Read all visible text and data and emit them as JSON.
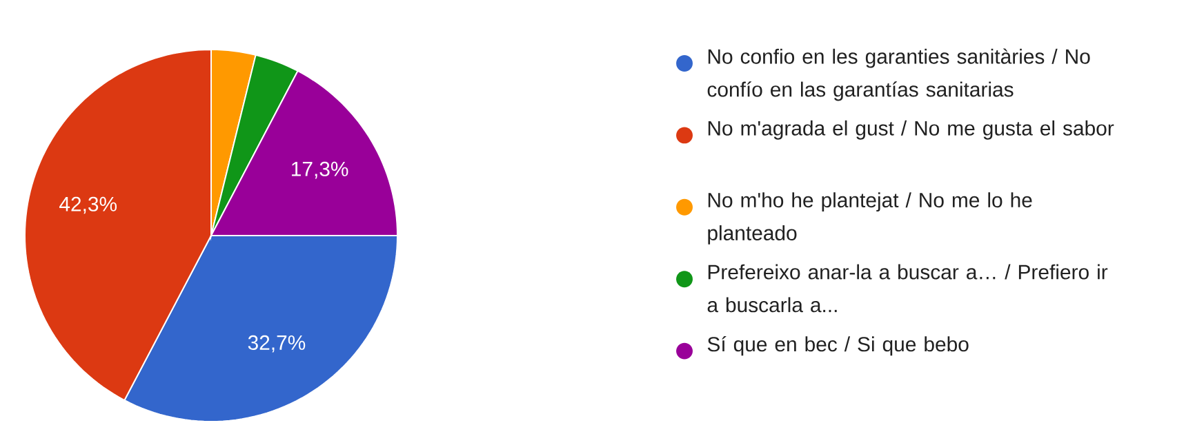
{
  "chart_data": {
    "type": "pie",
    "categories": [
      "No confio en les garanties sanitàries / No confío en las garantías sanitarias",
      "No m'agrada el gust / No me gusta el sabor",
      "No m'ho he plantejat / No me lo he planteado",
      "Prefereixo anar-la a buscar a… / Prefiero ir a buscarla a...",
      "Sí que en bec / Si que bebo"
    ],
    "values": [
      32.7,
      42.3,
      3.85,
      3.85,
      17.3
    ],
    "value_labels": [
      "32,7%",
      "42,3%",
      null,
      null,
      "17,3%"
    ],
    "colors": [
      "#3366cc",
      "#dc3912",
      "#ff9900",
      "#109618",
      "#990099"
    ],
    "legend": "right"
  }
}
